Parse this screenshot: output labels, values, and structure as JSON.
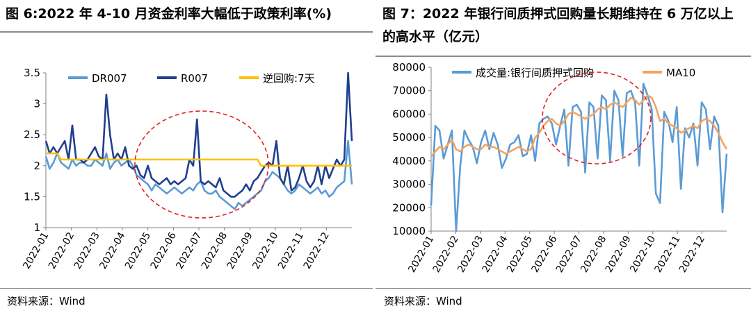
{
  "left": {
    "title": "图 6:2022 年 4-10 月资金利率大幅低于政策利率(%)",
    "source": "资料来源：Wind",
    "chart_data": {
      "type": "line",
      "xlabel": "",
      "ylabel": "",
      "ylim": [
        1,
        3.5
      ],
      "yticks": [
        "1",
        "1.5",
        "2",
        "2.5",
        "3",
        "3.5"
      ],
      "xticks": [
        "2022-01",
        "2022-02",
        "2022-03",
        "2022-04",
        "2022-05",
        "2022-06",
        "2022-07",
        "2022-08",
        "2022-09",
        "2022-10",
        "2022-11",
        "2022-12"
      ],
      "grid": false,
      "legend": "top",
      "annotation": "red dashed ellipse highlighting 2022-05 to 2022-09",
      "series": [
        {
          "name": "DR007",
          "color": "#5b9bd5",
          "values": [
            2.15,
            1.95,
            2.05,
            2.2,
            2.05,
            2.0,
            1.95,
            2.1,
            2.0,
            2.05,
            2.05,
            2.0,
            2.0,
            2.1,
            2.05,
            2.0,
            2.2,
            1.95,
            2.05,
            2.1,
            2.0,
            2.05,
            2.1,
            2.0,
            1.85,
            1.8,
            1.75,
            1.7,
            1.6,
            1.7,
            1.65,
            1.6,
            1.55,
            1.6,
            1.65,
            1.6,
            1.55,
            1.6,
            1.65,
            1.6,
            1.7,
            1.75,
            1.6,
            1.55,
            1.55,
            1.6,
            1.5,
            1.45,
            1.4,
            1.35,
            1.3,
            1.4,
            1.35,
            1.4,
            1.45,
            1.5,
            1.55,
            1.6,
            1.75,
            1.8,
            1.9,
            1.85,
            1.8,
            1.7,
            1.6,
            1.55,
            1.6,
            1.7,
            1.65,
            1.6,
            1.55,
            1.6,
            1.65,
            1.55,
            1.6,
            1.5,
            1.55,
            1.65,
            1.7,
            1.75,
            2.4,
            1.7
          ]
        },
        {
          "name": "R007",
          "color": "#1f3f8f",
          "values": [
            2.4,
            2.2,
            2.3,
            2.2,
            2.3,
            2.4,
            2.1,
            2.65,
            2.1,
            2.1,
            2.05,
            2.1,
            2.2,
            2.3,
            2.15,
            2.1,
            3.15,
            2.5,
            2.1,
            2.2,
            2.1,
            2.3,
            2.0,
            1.95,
            2.0,
            1.85,
            1.8,
            2.0,
            1.8,
            1.75,
            1.7,
            1.75,
            1.8,
            1.7,
            1.75,
            1.7,
            1.75,
            1.8,
            2.1,
            2.0,
            2.75,
            1.75,
            1.7,
            1.75,
            1.7,
            1.65,
            1.8,
            1.6,
            1.55,
            1.5,
            1.5,
            1.55,
            1.6,
            1.7,
            1.6,
            1.75,
            1.8,
            1.9,
            2.0,
            2.05,
            2.0,
            2.4,
            1.8,
            1.7,
            2.0,
            1.6,
            1.65,
            1.8,
            2.0,
            1.75,
            1.65,
            1.75,
            2.0,
            1.7,
            2.0,
            1.8,
            1.95,
            2.1,
            2.0,
            2.1,
            3.5,
            2.4
          ]
        },
        {
          "name": "逆回购:7天",
          "color": "#ffc000",
          "values": [
            2.2,
            2.2,
            2.2,
            2.2,
            2.1,
            2.1,
            2.1,
            2.1,
            2.1,
            2.1,
            2.1,
            2.1,
            2.1,
            2.1,
            2.1,
            2.1,
            2.1,
            2.1,
            2.1,
            2.1,
            2.1,
            2.1,
            2.1,
            2.1,
            2.1,
            2.1,
            2.1,
            2.1,
            2.1,
            2.1,
            2.1,
            2.1,
            2.1,
            2.1,
            2.1,
            2.1,
            2.1,
            2.1,
            2.1,
            2.1,
            2.1,
            2.1,
            2.1,
            2.1,
            2.1,
            2.1,
            2.1,
            2.1,
            2.1,
            2.1,
            2.1,
            2.1,
            2.1,
            2.1,
            2.1,
            2.1,
            2.1,
            2.0,
            2.0,
            2.0,
            2.0,
            2.0,
            2.0,
            2.0,
            2.0,
            2.0,
            2.0,
            2.0,
            2.0,
            2.0,
            2.0,
            2.0,
            2.0,
            2.0,
            2.0,
            2.0,
            2.0,
            2.0,
            2.0,
            2.0,
            2.0,
            2.0
          ]
        }
      ]
    }
  },
  "right": {
    "title": "图 7：2022 年银行间质押式回购量长期维持在 6 万亿以上的高水平（亿元）",
    "source": "资料来源：Wind",
    "chart_data": {
      "type": "line",
      "xlabel": "",
      "ylabel": "",
      "ylim": [
        10000,
        80000
      ],
      "yticks": [
        "10000",
        "20000",
        "30000",
        "40000",
        "50000",
        "60000",
        "70000",
        "80000"
      ],
      "xticks": [
        "2022-01",
        "2022-02",
        "2022-03",
        "2022-04",
        "2022-05",
        "2022-06",
        "2022-07",
        "2022-08",
        "2022-09",
        "2022-10",
        "2022-11",
        "2022-12"
      ],
      "grid": false,
      "legend": "top",
      "annotation": "red dashed ellipse highlighting 2022-06 to 2022-09",
      "series": [
        {
          "name": "成交量:银行间质押式回购",
          "color": "#5b9bd5",
          "values": [
            21000,
            55000,
            53000,
            41000,
            47000,
            53000,
            10000,
            38000,
            53000,
            49000,
            46000,
            39000,
            48000,
            53000,
            45000,
            52000,
            47000,
            37000,
            41000,
            47000,
            48000,
            51000,
            42000,
            43000,
            51000,
            40000,
            56000,
            58000,
            59000,
            56000,
            47000,
            55000,
            62000,
            38000,
            63000,
            64000,
            61000,
            35000,
            65000,
            63000,
            41000,
            68000,
            66000,
            40000,
            70000,
            66000,
            42000,
            69000,
            70000,
            65000,
            38000,
            73000,
            68000,
            62000,
            26000,
            22000,
            61000,
            57000,
            48000,
            63000,
            28000,
            54000,
            50000,
            56000,
            38000,
            65000,
            62000,
            45000,
            59000,
            55000,
            18000,
            43000
          ]
        },
        {
          "name": "MA10",
          "color": "#f4a460",
          "values": [
            42000,
            44000,
            46000,
            45000,
            47000,
            49000,
            45000,
            44000,
            46000,
            47000,
            46000,
            45000,
            45000,
            47000,
            46000,
            46000,
            45000,
            44000,
            43000,
            44000,
            45000,
            46000,
            45000,
            44000,
            45000,
            50000,
            52000,
            55000,
            57000,
            58000,
            56000,
            55000,
            57000,
            60000,
            61000,
            60000,
            59000,
            58000,
            59000,
            60000,
            62000,
            63000,
            62000,
            64000,
            65000,
            64000,
            63000,
            65000,
            67000,
            66000,
            64000,
            66000,
            68000,
            67000,
            63000,
            57000,
            58000,
            56000,
            55000,
            54000,
            52000,
            53000,
            54000,
            55000,
            54000,
            57000,
            58000,
            57000,
            55000,
            52000,
            48000,
            45000
          ]
        }
      ]
    }
  }
}
